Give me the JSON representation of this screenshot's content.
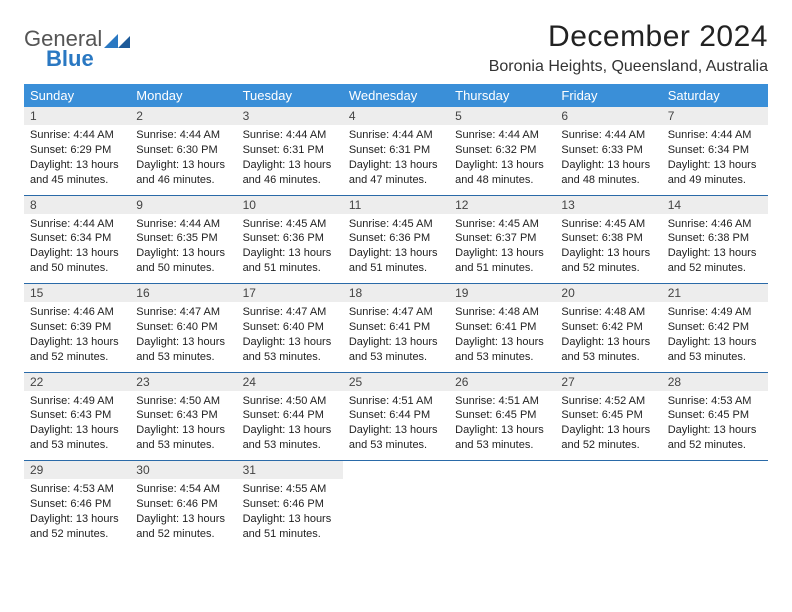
{
  "brand": {
    "word1": "General",
    "word2": "Blue"
  },
  "title": "December 2024",
  "location": "Boronia Heights, Queensland, Australia",
  "colors": {
    "header_bg": "#3a8fd8",
    "header_text": "#ffffff",
    "daynum_bg": "#ededed",
    "rule": "#2a6aa8",
    "brand_blue": "#2a78c2"
  },
  "weekdays": [
    "Sunday",
    "Monday",
    "Tuesday",
    "Wednesday",
    "Thursday",
    "Friday",
    "Saturday"
  ],
  "weeks": [
    [
      {
        "n": "1",
        "sr": "4:44 AM",
        "ss": "6:29 PM",
        "dl": "13 hours and 45 minutes."
      },
      {
        "n": "2",
        "sr": "4:44 AM",
        "ss": "6:30 PM",
        "dl": "13 hours and 46 minutes."
      },
      {
        "n": "3",
        "sr": "4:44 AM",
        "ss": "6:31 PM",
        "dl": "13 hours and 46 minutes."
      },
      {
        "n": "4",
        "sr": "4:44 AM",
        "ss": "6:31 PM",
        "dl": "13 hours and 47 minutes."
      },
      {
        "n": "5",
        "sr": "4:44 AM",
        "ss": "6:32 PM",
        "dl": "13 hours and 48 minutes."
      },
      {
        "n": "6",
        "sr": "4:44 AM",
        "ss": "6:33 PM",
        "dl": "13 hours and 48 minutes."
      },
      {
        "n": "7",
        "sr": "4:44 AM",
        "ss": "6:34 PM",
        "dl": "13 hours and 49 minutes."
      }
    ],
    [
      {
        "n": "8",
        "sr": "4:44 AM",
        "ss": "6:34 PM",
        "dl": "13 hours and 50 minutes."
      },
      {
        "n": "9",
        "sr": "4:44 AM",
        "ss": "6:35 PM",
        "dl": "13 hours and 50 minutes."
      },
      {
        "n": "10",
        "sr": "4:45 AM",
        "ss": "6:36 PM",
        "dl": "13 hours and 51 minutes."
      },
      {
        "n": "11",
        "sr": "4:45 AM",
        "ss": "6:36 PM",
        "dl": "13 hours and 51 minutes."
      },
      {
        "n": "12",
        "sr": "4:45 AM",
        "ss": "6:37 PM",
        "dl": "13 hours and 51 minutes."
      },
      {
        "n": "13",
        "sr": "4:45 AM",
        "ss": "6:38 PM",
        "dl": "13 hours and 52 minutes."
      },
      {
        "n": "14",
        "sr": "4:46 AM",
        "ss": "6:38 PM",
        "dl": "13 hours and 52 minutes."
      }
    ],
    [
      {
        "n": "15",
        "sr": "4:46 AM",
        "ss": "6:39 PM",
        "dl": "13 hours and 52 minutes."
      },
      {
        "n": "16",
        "sr": "4:47 AM",
        "ss": "6:40 PM",
        "dl": "13 hours and 53 minutes."
      },
      {
        "n": "17",
        "sr": "4:47 AM",
        "ss": "6:40 PM",
        "dl": "13 hours and 53 minutes."
      },
      {
        "n": "18",
        "sr": "4:47 AM",
        "ss": "6:41 PM",
        "dl": "13 hours and 53 minutes."
      },
      {
        "n": "19",
        "sr": "4:48 AM",
        "ss": "6:41 PM",
        "dl": "13 hours and 53 minutes."
      },
      {
        "n": "20",
        "sr": "4:48 AM",
        "ss": "6:42 PM",
        "dl": "13 hours and 53 minutes."
      },
      {
        "n": "21",
        "sr": "4:49 AM",
        "ss": "6:42 PM",
        "dl": "13 hours and 53 minutes."
      }
    ],
    [
      {
        "n": "22",
        "sr": "4:49 AM",
        "ss": "6:43 PM",
        "dl": "13 hours and 53 minutes."
      },
      {
        "n": "23",
        "sr": "4:50 AM",
        "ss": "6:43 PM",
        "dl": "13 hours and 53 minutes."
      },
      {
        "n": "24",
        "sr": "4:50 AM",
        "ss": "6:44 PM",
        "dl": "13 hours and 53 minutes."
      },
      {
        "n": "25",
        "sr": "4:51 AM",
        "ss": "6:44 PM",
        "dl": "13 hours and 53 minutes."
      },
      {
        "n": "26",
        "sr": "4:51 AM",
        "ss": "6:45 PM",
        "dl": "13 hours and 53 minutes."
      },
      {
        "n": "27",
        "sr": "4:52 AM",
        "ss": "6:45 PM",
        "dl": "13 hours and 52 minutes."
      },
      {
        "n": "28",
        "sr": "4:53 AM",
        "ss": "6:45 PM",
        "dl": "13 hours and 52 minutes."
      }
    ],
    [
      {
        "n": "29",
        "sr": "4:53 AM",
        "ss": "6:46 PM",
        "dl": "13 hours and 52 minutes."
      },
      {
        "n": "30",
        "sr": "4:54 AM",
        "ss": "6:46 PM",
        "dl": "13 hours and 52 minutes."
      },
      {
        "n": "31",
        "sr": "4:55 AM",
        "ss": "6:46 PM",
        "dl": "13 hours and 51 minutes."
      },
      null,
      null,
      null,
      null
    ]
  ],
  "labels": {
    "sunrise": "Sunrise: ",
    "sunset": "Sunset: ",
    "daylight": "Daylight: "
  }
}
